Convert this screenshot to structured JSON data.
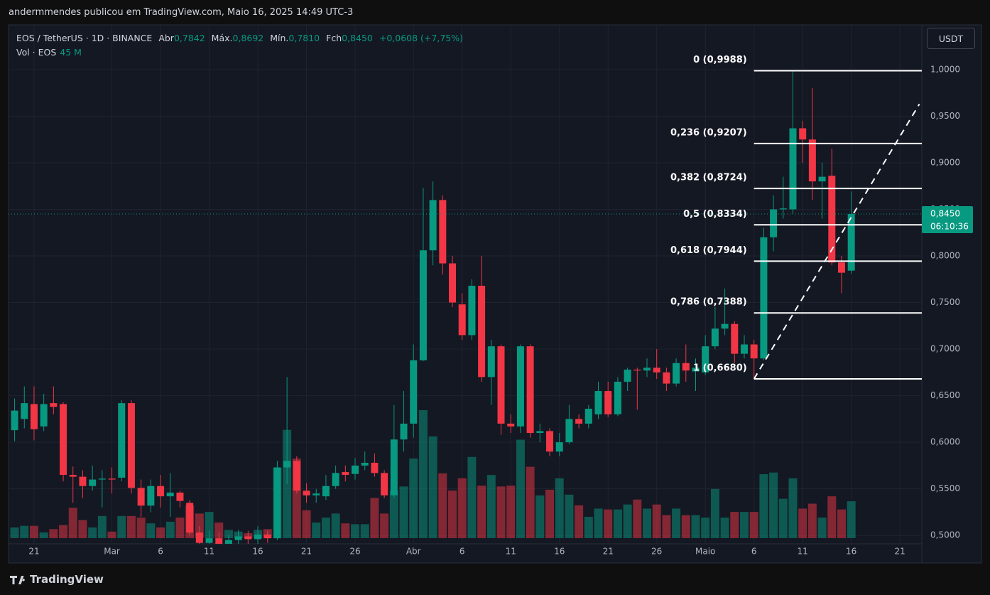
{
  "header": "andermmendes publicou em TradingView.com, Maio 16, 2025 14:49 UTC-3",
  "footer": "TradingView",
  "chart_data": {
    "type": "candlestick",
    "legend": {
      "symbol": "EOS / TetherUS · 1D · BINANCE",
      "open_text": "Abr",
      "open": "0,7842",
      "high_text": "Máx.",
      "high": "0,8692",
      "low_text": "Mín.",
      "low": "0,7810",
      "close_text": "Fch",
      "close": "0,8450",
      "change": "+0,0608 (+7,75%)",
      "volume_text": "Vol · EOS",
      "volume": "45 M"
    },
    "currency_button": "USDT",
    "up_color": "#089981",
    "down_color": "#f23645",
    "x": [
      "2025-02-19",
      "2025-02-20",
      "2025-02-21",
      "2025-02-22",
      "2025-02-23",
      "2025-02-24",
      "2025-02-25",
      "2025-02-26",
      "2025-02-27",
      "2025-02-28",
      "2025-03-01",
      "2025-03-02",
      "2025-03-03",
      "2025-03-04",
      "2025-03-05",
      "2025-03-06",
      "2025-03-07",
      "2025-03-08",
      "2025-03-09",
      "2025-03-10",
      "2025-03-11",
      "2025-03-12",
      "2025-03-13",
      "2025-03-14",
      "2025-03-15",
      "2025-03-16",
      "2025-03-17",
      "2025-03-18",
      "2025-03-19",
      "2025-03-20",
      "2025-03-21",
      "2025-03-22",
      "2025-03-23",
      "2025-03-24",
      "2025-03-25",
      "2025-03-26",
      "2025-03-27",
      "2025-03-28",
      "2025-03-29",
      "2025-03-30",
      "2025-03-31",
      "2025-04-01",
      "2025-04-02",
      "2025-04-03",
      "2025-04-04",
      "2025-04-05",
      "2025-04-06",
      "2025-04-07",
      "2025-04-08",
      "2025-04-09",
      "2025-04-10",
      "2025-04-11",
      "2025-04-12",
      "2025-04-13",
      "2025-04-14",
      "2025-04-15",
      "2025-04-16",
      "2025-04-17",
      "2025-04-18",
      "2025-04-19",
      "2025-04-20",
      "2025-04-21",
      "2025-04-22",
      "2025-04-23",
      "2025-04-24",
      "2025-04-25",
      "2025-04-26",
      "2025-04-27",
      "2025-04-28",
      "2025-04-29",
      "2025-04-30",
      "2025-05-01",
      "2025-05-02",
      "2025-05-03",
      "2025-05-04",
      "2025-05-05",
      "2025-05-06",
      "2025-05-07",
      "2025-05-08",
      "2025-05-09",
      "2025-05-10",
      "2025-05-11",
      "2025-05-12",
      "2025-05-13",
      "2025-05-14",
      "2025-05-15",
      "2025-05-16"
    ],
    "open": [
      0.613,
      0.625,
      0.641,
      0.617,
      0.642,
      0.641,
      0.565,
      0.563,
      0.553,
      0.56,
      0.561,
      0.562,
      0.642,
      0.551,
      0.532,
      0.553,
      0.542,
      0.546,
      0.535,
      0.503,
      0.492,
      0.497,
      0.49,
      0.495,
      0.499,
      0.496,
      0.501,
      0.497,
      0.573,
      0.58,
      0.548,
      0.543,
      0.542,
      0.553,
      0.568,
      0.566,
      0.575,
      0.578,
      0.567,
      0.543,
      0.603,
      0.62,
      0.688,
      0.806,
      0.86,
      0.792,
      0.748,
      0.715,
      0.768,
      0.67,
      0.703,
      0.62,
      0.617,
      0.703,
      0.61,
      0.612,
      0.59,
      0.6,
      0.625,
      0.62,
      0.63,
      0.655,
      0.63,
      0.665,
      0.678,
      0.677,
      0.68,
      0.675,
      0.663,
      0.685,
      0.676,
      0.675,
      0.703,
      0.722,
      0.727,
      0.695,
      0.705,
      0.69,
      0.82,
      0.85,
      0.85,
      0.937,
      0.925,
      0.88,
      0.886,
      0.793,
      0.7842
    ],
    "high": [
      0.647,
      0.66,
      0.66,
      0.652,
      0.66,
      0.643,
      0.574,
      0.57,
      0.575,
      0.57,
      0.573,
      0.645,
      0.645,
      0.56,
      0.56,
      0.565,
      0.567,
      0.548,
      0.538,
      0.51,
      0.505,
      0.503,
      0.5,
      0.506,
      0.505,
      0.51,
      0.505,
      0.58,
      0.67,
      0.585,
      0.556,
      0.55,
      0.565,
      0.575,
      0.575,
      0.583,
      0.59,
      0.588,
      0.57,
      0.64,
      0.655,
      0.705,
      0.873,
      0.88,
      0.865,
      0.8,
      0.76,
      0.775,
      0.8,
      0.71,
      0.705,
      0.63,
      0.705,
      0.705,
      0.62,
      0.615,
      0.61,
      0.64,
      0.63,
      0.64,
      0.665,
      0.665,
      0.67,
      0.68,
      0.68,
      0.69,
      0.7,
      0.68,
      0.69,
      0.705,
      0.69,
      0.715,
      0.745,
      0.765,
      0.73,
      0.715,
      0.71,
      0.83,
      0.865,
      0.885,
      0.9988,
      0.945,
      0.98,
      0.9,
      0.915,
      0.8,
      0.8692
    ],
    "low": [
      0.601,
      0.615,
      0.602,
      0.612,
      0.63,
      0.558,
      0.535,
      0.54,
      0.548,
      0.53,
      0.545,
      0.558,
      0.545,
      0.52,
      0.525,
      0.53,
      0.52,
      0.53,
      0.5,
      0.48,
      0.485,
      0.48,
      0.483,
      0.488,
      0.49,
      0.49,
      0.492,
      0.495,
      0.555,
      0.545,
      0.535,
      0.535,
      0.538,
      0.55,
      0.558,
      0.56,
      0.57,
      0.563,
      0.54,
      0.54,
      0.59,
      0.605,
      0.687,
      0.79,
      0.78,
      0.745,
      0.71,
      0.71,
      0.665,
      0.64,
      0.608,
      0.61,
      0.61,
      0.605,
      0.6,
      0.585,
      0.585,
      0.598,
      0.615,
      0.615,
      0.625,
      0.627,
      0.628,
      0.655,
      0.635,
      0.67,
      0.668,
      0.655,
      0.66,
      0.665,
      0.655,
      0.672,
      0.7,
      0.715,
      0.685,
      0.69,
      0.668,
      0.688,
      0.805,
      0.84,
      0.845,
      0.9,
      0.86,
      0.84,
      0.79,
      0.76,
      0.781
    ],
    "close": [
      0.634,
      0.642,
      0.614,
      0.641,
      0.638,
      0.565,
      0.563,
      0.553,
      0.56,
      0.561,
      0.56,
      0.642,
      0.551,
      0.532,
      0.553,
      0.542,
      0.546,
      0.537,
      0.503,
      0.492,
      0.497,
      0.49,
      0.495,
      0.499,
      0.496,
      0.501,
      0.497,
      0.573,
      0.58,
      0.548,
      0.543,
      0.545,
      0.553,
      0.567,
      0.565,
      0.575,
      0.578,
      0.567,
      0.543,
      0.603,
      0.62,
      0.688,
      0.806,
      0.86,
      0.792,
      0.75,
      0.715,
      0.768,
      0.67,
      0.703,
      0.62,
      0.617,
      0.703,
      0.61,
      0.612,
      0.59,
      0.6,
      0.625,
      0.62,
      0.636,
      0.655,
      0.63,
      0.665,
      0.678,
      0.677,
      0.68,
      0.675,
      0.663,
      0.685,
      0.677,
      0.68,
      0.703,
      0.722,
      0.727,
      0.695,
      0.705,
      0.69,
      0.82,
      0.85,
      0.851,
      0.937,
      0.925,
      0.88,
      0.885,
      0.793,
      0.782,
      0.845
    ],
    "volume": [
      13,
      15,
      15,
      7,
      11,
      16,
      37,
      22,
      13,
      27,
      8,
      27,
      27,
      25,
      18,
      13,
      20,
      25,
      40,
      30,
      32,
      19,
      10,
      8,
      6,
      10,
      11,
      86,
      132,
      97,
      34,
      19,
      25,
      30,
      18,
      17,
      17,
      49,
      30,
      58,
      63,
      97,
      156,
      124,
      79,
      58,
      73,
      99,
      64,
      77,
      63,
      64,
      120,
      87,
      52,
      59,
      73,
      53,
      40,
      26,
      36,
      35,
      35,
      41,
      47,
      36,
      41,
      28,
      36,
      28,
      28,
      25,
      60,
      25,
      32,
      32,
      32,
      78,
      80,
      48,
      73,
      36,
      42,
      25,
      51,
      35,
      45
    ],
    "xlim": [
      "2025-02-18T09:00Z",
      "2025-05-23T06:00Z"
    ],
    "xticks": [
      {
        "value": "2025-02-21",
        "label": "21"
      },
      {
        "value": "2025-03-01",
        "label": "Mar"
      },
      {
        "value": "2025-03-06",
        "label": "6"
      },
      {
        "value": "2025-03-11",
        "label": "11"
      },
      {
        "value": "2025-03-16",
        "label": "16"
      },
      {
        "value": "2025-03-21",
        "label": "21"
      },
      {
        "value": "2025-03-26",
        "label": "26"
      },
      {
        "value": "2025-04-01",
        "label": "Abr"
      },
      {
        "value": "2025-04-06",
        "label": "6"
      },
      {
        "value": "2025-04-11",
        "label": "11"
      },
      {
        "value": "2025-04-16",
        "label": "16"
      },
      {
        "value": "2025-04-21",
        "label": "21"
      },
      {
        "value": "2025-04-26",
        "label": "26"
      },
      {
        "value": "2025-05-01",
        "label": "Maio"
      },
      {
        "value": "2025-05-06",
        "label": "6"
      },
      {
        "value": "2025-05-11",
        "label": "11"
      },
      {
        "value": "2025-05-16",
        "label": "16"
      },
      {
        "value": "2025-05-21",
        "label": "21"
      }
    ],
    "ylim": [
      0.491,
      1.048
    ],
    "yticks": [
      {
        "value": 0.5,
        "label": "0,5000"
      },
      {
        "value": 0.55,
        "label": "0,5500"
      },
      {
        "value": 0.6,
        "label": "0,6000"
      },
      {
        "value": 0.65,
        "label": "0,6500"
      },
      {
        "value": 0.7,
        "label": "0,7000"
      },
      {
        "value": 0.75,
        "label": "0,7500"
      },
      {
        "value": 0.8,
        "label": "0,8000"
      },
      {
        "value": 0.85,
        "label": "0,8500"
      },
      {
        "value": 0.9,
        "label": "0,9000"
      },
      {
        "value": 0.95,
        "label": "0,9500"
      },
      {
        "value": 1.0,
        "label": "1,0000"
      }
    ],
    "grid": true,
    "last_price": {
      "value": 0.845,
      "label": "0,8450",
      "countdown": "06:10:36"
    },
    "fib_start": "2025-05-06",
    "fib_levels": [
      {
        "ratio": 0,
        "price": 0.9988,
        "label": "0 (0,9988)"
      },
      {
        "ratio": 0.236,
        "price": 0.9207,
        "label": "0,236 (0,9207)"
      },
      {
        "ratio": 0.382,
        "price": 0.8724,
        "label": "0,382 (0,8724)"
      },
      {
        "ratio": 0.5,
        "price": 0.8334,
        "label": "0,5 (0,8334)"
      },
      {
        "ratio": 0.618,
        "price": 0.7944,
        "label": "0,618 (0,7944)"
      },
      {
        "ratio": 0.786,
        "price": 0.7388,
        "label": "0,786 (0,7388)"
      },
      {
        "ratio": 1,
        "price": 0.668,
        "label": "1 (0,6680)"
      }
    ],
    "trend_line": {
      "from": [
        "2025-05-06",
        0.668
      ],
      "to": [
        "2025-05-23",
        0.963
      ]
    }
  }
}
